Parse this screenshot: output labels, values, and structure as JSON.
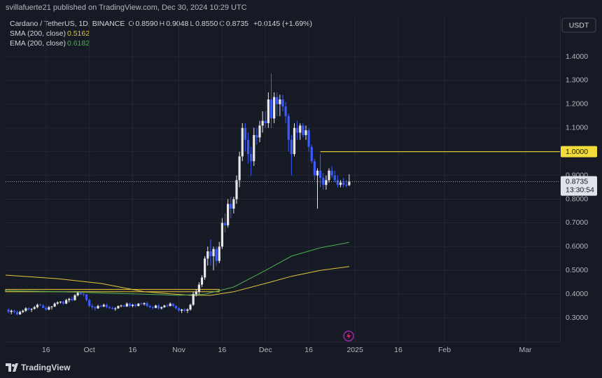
{
  "header": {
    "published": "svillafuerte21 published on TradingView.com, Dec 30, 2024 10:29 UTC"
  },
  "legend": {
    "symbol": "Cardano / TetherUS, 1D, BINANCE",
    "ohlc": [
      {
        "key": "O",
        "value": "0.8590"
      },
      {
        "key": "H",
        "value": "0.9048"
      },
      {
        "key": "L",
        "value": "0.8550"
      },
      {
        "key": "C",
        "value": "0.8735"
      }
    ],
    "change": "+0.0145 (+1.69%)"
  },
  "footer": {
    "brand": "TradingView"
  },
  "chart_data": {
    "type": "candlestick",
    "axis_unit": "USDT",
    "up_color": "#e8e8ec",
    "down_color": "#3b5bfd",
    "grid": true,
    "x": [
      "2024-09-03",
      "2024-09-04",
      "2024-09-05",
      "2024-09-06",
      "2024-09-07",
      "2024-09-08",
      "2024-09-09",
      "2024-09-10",
      "2024-09-11",
      "2024-09-12",
      "2024-09-13",
      "2024-09-14",
      "2024-09-15",
      "2024-09-16",
      "2024-09-17",
      "2024-09-18",
      "2024-09-19",
      "2024-09-20",
      "2024-09-21",
      "2024-09-22",
      "2024-09-23",
      "2024-09-24",
      "2024-09-25",
      "2024-09-26",
      "2024-09-27",
      "2024-09-28",
      "2024-09-29",
      "2024-09-30",
      "2024-10-01",
      "2024-10-02",
      "2024-10-03",
      "2024-10-04",
      "2024-10-05",
      "2024-10-06",
      "2024-10-07",
      "2024-10-08",
      "2024-10-09",
      "2024-10-10",
      "2024-10-11",
      "2024-10-12",
      "2024-10-13",
      "2024-10-14",
      "2024-10-15",
      "2024-10-16",
      "2024-10-17",
      "2024-10-18",
      "2024-10-19",
      "2024-10-20",
      "2024-10-21",
      "2024-10-22",
      "2024-10-23",
      "2024-10-24",
      "2024-10-25",
      "2024-10-26",
      "2024-10-27",
      "2024-10-28",
      "2024-10-29",
      "2024-10-30",
      "2024-10-31",
      "2024-11-01",
      "2024-11-02",
      "2024-11-03",
      "2024-11-04",
      "2024-11-05",
      "2024-11-06",
      "2024-11-07",
      "2024-11-08",
      "2024-11-09",
      "2024-11-10",
      "2024-11-11",
      "2024-11-12",
      "2024-11-13",
      "2024-11-14",
      "2024-11-15",
      "2024-11-16",
      "2024-11-17",
      "2024-11-18",
      "2024-11-19",
      "2024-11-20",
      "2024-11-21",
      "2024-11-22",
      "2024-11-23",
      "2024-11-24",
      "2024-11-25",
      "2024-11-26",
      "2024-11-27",
      "2024-11-28",
      "2024-11-29",
      "2024-11-30",
      "2024-12-01",
      "2024-12-02",
      "2024-12-03",
      "2024-12-04",
      "2024-12-05",
      "2024-12-06",
      "2024-12-07",
      "2024-12-08",
      "2024-12-09",
      "2024-12-10",
      "2024-12-11",
      "2024-12-12",
      "2024-12-13",
      "2024-12-14",
      "2024-12-15",
      "2024-12-16",
      "2024-12-17",
      "2024-12-18",
      "2024-12-19",
      "2024-12-20",
      "2024-12-21",
      "2024-12-22",
      "2024-12-23",
      "2024-12-24",
      "2024-12-25",
      "2024-12-26",
      "2024-12-27",
      "2024-12-28",
      "2024-12-29",
      "2024-12-30"
    ],
    "ohlc": [
      [
        0.335,
        0.34,
        0.32,
        0.325
      ],
      [
        0.325,
        0.335,
        0.315,
        0.33
      ],
      [
        0.33,
        0.335,
        0.32,
        0.325
      ],
      [
        0.325,
        0.33,
        0.31,
        0.315
      ],
      [
        0.315,
        0.33,
        0.312,
        0.325
      ],
      [
        0.325,
        0.335,
        0.32,
        0.33
      ],
      [
        0.33,
        0.345,
        0.325,
        0.34
      ],
      [
        0.34,
        0.345,
        0.33,
        0.335
      ],
      [
        0.335,
        0.34,
        0.325,
        0.338
      ],
      [
        0.338,
        0.35,
        0.335,
        0.345
      ],
      [
        0.345,
        0.36,
        0.34,
        0.355
      ],
      [
        0.355,
        0.36,
        0.35,
        0.352
      ],
      [
        0.352,
        0.358,
        0.34,
        0.342
      ],
      [
        0.342,
        0.35,
        0.33,
        0.335
      ],
      [
        0.335,
        0.35,
        0.332,
        0.345
      ],
      [
        0.345,
        0.35,
        0.335,
        0.348
      ],
      [
        0.348,
        0.365,
        0.345,
        0.36
      ],
      [
        0.36,
        0.37,
        0.355,
        0.365
      ],
      [
        0.365,
        0.37,
        0.36,
        0.368
      ],
      [
        0.368,
        0.372,
        0.355,
        0.36
      ],
      [
        0.36,
        0.38,
        0.358,
        0.375
      ],
      [
        0.375,
        0.385,
        0.365,
        0.38
      ],
      [
        0.38,
        0.39,
        0.37,
        0.375
      ],
      [
        0.375,
        0.4,
        0.372,
        0.395
      ],
      [
        0.395,
        0.41,
        0.39,
        0.405
      ],
      [
        0.405,
        0.41,
        0.395,
        0.4
      ],
      [
        0.4,
        0.405,
        0.39,
        0.398
      ],
      [
        0.398,
        0.4,
        0.37,
        0.375
      ],
      [
        0.375,
        0.38,
        0.345,
        0.35
      ],
      [
        0.35,
        0.36,
        0.335,
        0.345
      ],
      [
        0.345,
        0.35,
        0.33,
        0.34
      ],
      [
        0.34,
        0.355,
        0.338,
        0.35
      ],
      [
        0.35,
        0.355,
        0.345,
        0.348
      ],
      [
        0.348,
        0.36,
        0.345,
        0.355
      ],
      [
        0.355,
        0.36,
        0.34,
        0.345
      ],
      [
        0.345,
        0.35,
        0.338,
        0.342
      ],
      [
        0.342,
        0.348,
        0.335,
        0.338
      ],
      [
        0.338,
        0.345,
        0.33,
        0.34
      ],
      [
        0.34,
        0.352,
        0.338,
        0.35
      ],
      [
        0.35,
        0.355,
        0.345,
        0.352
      ],
      [
        0.352,
        0.355,
        0.345,
        0.348
      ],
      [
        0.348,
        0.365,
        0.346,
        0.36
      ],
      [
        0.36,
        0.365,
        0.345,
        0.35
      ],
      [
        0.35,
        0.358,
        0.345,
        0.355
      ],
      [
        0.355,
        0.36,
        0.345,
        0.35
      ],
      [
        0.35,
        0.362,
        0.348,
        0.36
      ],
      [
        0.36,
        0.365,
        0.355,
        0.358
      ],
      [
        0.358,
        0.365,
        0.352,
        0.362
      ],
      [
        0.362,
        0.368,
        0.345,
        0.35
      ],
      [
        0.35,
        0.355,
        0.34,
        0.345
      ],
      [
        0.345,
        0.35,
        0.335,
        0.342
      ],
      [
        0.342,
        0.355,
        0.34,
        0.352
      ],
      [
        0.352,
        0.358,
        0.335,
        0.34
      ],
      [
        0.34,
        0.348,
        0.335,
        0.345
      ],
      [
        0.345,
        0.355,
        0.342,
        0.352
      ],
      [
        0.352,
        0.358,
        0.345,
        0.35
      ],
      [
        0.35,
        0.365,
        0.348,
        0.36
      ],
      [
        0.36,
        0.362,
        0.345,
        0.35
      ],
      [
        0.35,
        0.355,
        0.335,
        0.34
      ],
      [
        0.34,
        0.345,
        0.325,
        0.33
      ],
      [
        0.33,
        0.338,
        0.32,
        0.335
      ],
      [
        0.335,
        0.34,
        0.325,
        0.33
      ],
      [
        0.33,
        0.34,
        0.32,
        0.335
      ],
      [
        0.335,
        0.36,
        0.33,
        0.355
      ],
      [
        0.355,
        0.41,
        0.35,
        0.4
      ],
      [
        0.4,
        0.42,
        0.39,
        0.41
      ],
      [
        0.41,
        0.45,
        0.4,
        0.44
      ],
      [
        0.44,
        0.48,
        0.43,
        0.47
      ],
      [
        0.47,
        0.56,
        0.46,
        0.55
      ],
      [
        0.55,
        0.6,
        0.52,
        0.58
      ],
      [
        0.58,
        0.63,
        0.52,
        0.56
      ],
      [
        0.56,
        0.6,
        0.5,
        0.59
      ],
      [
        0.59,
        0.6,
        0.52,
        0.54
      ],
      [
        0.54,
        0.62,
        0.53,
        0.6
      ],
      [
        0.6,
        0.72,
        0.59,
        0.7
      ],
      [
        0.7,
        0.74,
        0.66,
        0.69
      ],
      [
        0.69,
        0.8,
        0.68,
        0.78
      ],
      [
        0.78,
        0.81,
        0.72,
        0.76
      ],
      [
        0.76,
        0.81,
        0.74,
        0.8
      ],
      [
        0.8,
        0.9,
        0.78,
        0.88
      ],
      [
        0.88,
        1.0,
        0.85,
        0.98
      ],
      [
        0.98,
        1.12,
        0.96,
        1.1
      ],
      [
        1.1,
        1.12,
        1.0,
        1.05
      ],
      [
        1.05,
        1.08,
        0.95,
        0.99
      ],
      [
        0.99,
        1.02,
        0.9,
        0.96
      ],
      [
        0.96,
        1.1,
        0.94,
        1.07
      ],
      [
        1.07,
        1.1,
        1.03,
        1.06
      ],
      [
        1.06,
        1.13,
        1.04,
        1.11
      ],
      [
        1.11,
        1.17,
        1.08,
        1.13
      ],
      [
        1.13,
        1.17,
        1.1,
        1.12
      ],
      [
        1.12,
        1.25,
        1.1,
        1.22
      ],
      [
        1.22,
        1.33,
        1.1,
        1.14
      ],
      [
        1.14,
        1.25,
        1.12,
        1.23
      ],
      [
        1.23,
        1.25,
        1.15,
        1.2
      ],
      [
        1.2,
        1.24,
        1.15,
        1.22
      ],
      [
        1.22,
        1.24,
        1.17,
        1.19
      ],
      [
        1.19,
        1.21,
        1.12,
        1.15
      ],
      [
        1.15,
        1.16,
        1.0,
        1.05
      ],
      [
        1.05,
        1.07,
        0.9,
        0.99
      ],
      [
        0.99,
        1.12,
        0.98,
        1.1
      ],
      [
        1.1,
        1.13,
        1.05,
        1.08
      ],
      [
        1.08,
        1.12,
        1.05,
        1.11
      ],
      [
        1.11,
        1.12,
        1.06,
        1.07
      ],
      [
        1.07,
        1.11,
        1.05,
        1.09
      ],
      [
        1.09,
        1.1,
        1.0,
        1.02
      ],
      [
        1.02,
        1.03,
        0.95,
        0.96
      ],
      [
        0.96,
        0.97,
        0.88,
        0.9
      ],
      [
        0.9,
        0.93,
        0.76,
        0.92
      ],
      [
        0.92,
        0.99,
        0.85,
        0.89
      ],
      [
        0.89,
        0.91,
        0.84,
        0.86
      ],
      [
        0.86,
        0.9,
        0.84,
        0.88
      ],
      [
        0.88,
        0.93,
        0.87,
        0.92
      ],
      [
        0.92,
        0.94,
        0.89,
        0.9
      ],
      [
        0.9,
        0.92,
        0.87,
        0.88
      ],
      [
        0.88,
        0.9,
        0.85,
        0.86
      ],
      [
        0.86,
        0.88,
        0.85,
        0.87
      ],
      [
        0.87,
        0.89,
        0.85,
        0.86
      ],
      [
        0.86,
        0.88,
        0.85,
        0.859
      ],
      [
        0.859,
        0.9048,
        0.855,
        0.8735
      ]
    ],
    "lines": [
      {
        "name": "SMA (200, close)",
        "color": "#e6c53a",
        "x": [
          "2024-09-02",
          "2024-09-20",
          "2024-10-05",
          "2024-10-20",
          "2024-11-05",
          "2024-11-12",
          "2024-11-20",
          "2024-12-01",
          "2024-12-10",
          "2024-12-20",
          "2024-12-30"
        ],
        "values": [
          0.48,
          0.465,
          0.445,
          0.41,
          0.395,
          0.395,
          0.41,
          0.445,
          0.475,
          0.5,
          0.5162
        ]
      },
      {
        "name": "EMA (200, close)",
        "color": "#4caf50",
        "x": [
          "2024-09-02",
          "2024-09-20",
          "2024-10-05",
          "2024-10-20",
          "2024-11-01",
          "2024-11-10",
          "2024-11-20",
          "2024-12-01",
          "2024-12-10",
          "2024-12-20",
          "2024-12-30"
        ],
        "values": [
          0.415,
          0.41,
          0.405,
          0.4,
          0.395,
          0.4,
          0.43,
          0.5,
          0.56,
          0.595,
          0.6182
        ]
      }
    ],
    "zone": {
      "x": [
        "2024-09-02",
        "2024-11-15"
      ],
      "y": [
        0.41,
        0.42
      ],
      "color": "#e6c53a"
    },
    "levels": [
      {
        "value": 1,
        "label": "1.0000",
        "from": "2024-12-20",
        "color": "#f2dc3a"
      }
    ],
    "last_price": {
      "value": 0.8735,
      "label": "0.8735",
      "countdown": "13:30:54"
    },
    "xlim": [
      "2024-09-02",
      "2025-03-13"
    ],
    "xticks": [
      {
        "value": "2024-09-16",
        "label": "16"
      },
      {
        "value": "2024-10-01",
        "label": "Oct"
      },
      {
        "value": "2024-10-16",
        "label": "16"
      },
      {
        "value": "2024-11-01",
        "label": "Nov"
      },
      {
        "value": "2024-11-16",
        "label": "16"
      },
      {
        "value": "2024-12-01",
        "label": "Dec"
      },
      {
        "value": "2024-12-16",
        "label": "16"
      },
      {
        "value": "2025-01-01",
        "label": "2025"
      },
      {
        "value": "2025-01-16",
        "label": "16"
      },
      {
        "value": "2025-02-01",
        "label": "Feb"
      },
      {
        "value": "2025-03-01",
        "label": "Mar"
      }
    ],
    "ylim": [
      0.2,
      1.574
    ],
    "yticks": [
      {
        "value": 0.3,
        "label": "0.3000"
      },
      {
        "value": 0.4,
        "label": "0.4000"
      },
      {
        "value": 0.5,
        "label": "0.5000"
      },
      {
        "value": 0.6,
        "label": "0.6000"
      },
      {
        "value": 0.7,
        "label": "0.7000"
      },
      {
        "value": 0.8,
        "label": "0.8000"
      },
      {
        "value": 0.9,
        "label": "0.9000"
      },
      {
        "value": 1,
        "label": "1.0000"
      },
      {
        "value": 1.1,
        "label": "1.1000"
      },
      {
        "value": 1.2,
        "label": "1.2000"
      },
      {
        "value": 1.3,
        "label": "1.3000"
      },
      {
        "value": 1.4,
        "label": "1.4000"
      }
    ]
  }
}
